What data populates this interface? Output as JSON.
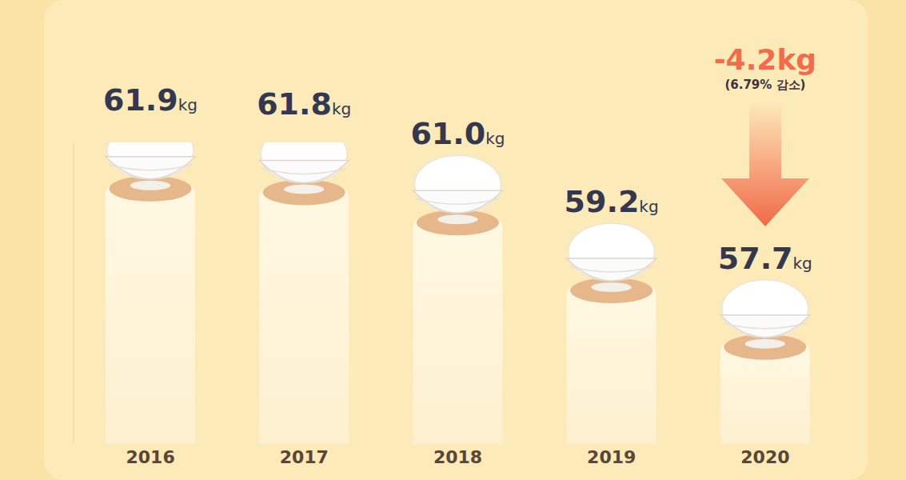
{
  "chart_data": {
    "type": "bar",
    "categories": [
      "2016",
      "2017",
      "2018",
      "2019",
      "2020"
    ],
    "values": [
      61.9,
      61.8,
      61.0,
      59.2,
      57.7
    ],
    "value_labels": [
      "61.9kg",
      "61.8kg",
      "61.0kg",
      "59.2kg",
      "57.7kg"
    ],
    "data_labels": true,
    "color": "#fff8e2",
    "ylim": [
      55,
      63
    ],
    "tick_labels": "x",
    "grid": false,
    "annotations": [
      "-4.2kg",
      "(6.79% 감소)"
    ]
  }
}
